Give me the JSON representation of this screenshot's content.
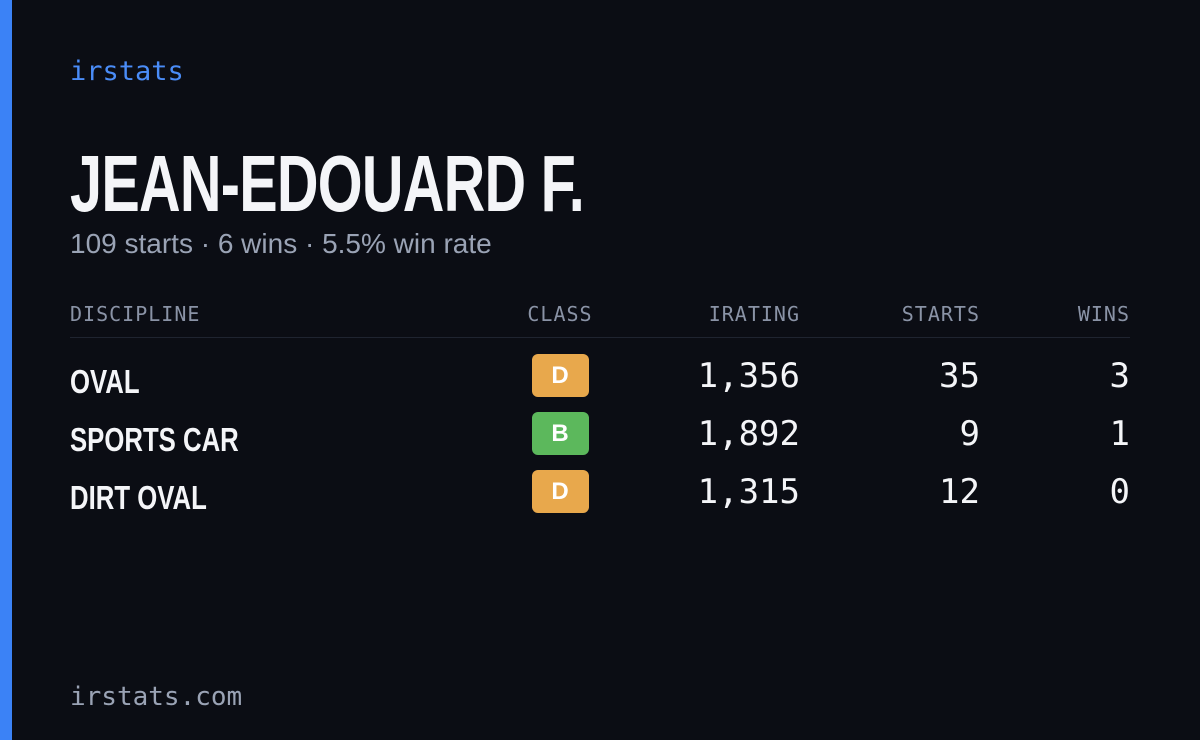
{
  "brand": "irstats",
  "name": "JEAN-EDOUARD F.",
  "summary": "109 starts · 6 wins · 5.5% win rate",
  "table": {
    "headers": [
      "DISCIPLINE",
      "CLASS",
      "IRATING",
      "STARTS",
      "WINS"
    ],
    "rows": [
      {
        "discipline": "OVAL",
        "class": "D",
        "class_color": "#e8a84c",
        "irating": "1,356",
        "starts": 35,
        "wins": 3
      },
      {
        "discipline": "SPORTS CAR",
        "class": "B",
        "class_color": "#5cb85c",
        "irating": "1,892",
        "starts": 9,
        "wins": 1
      },
      {
        "discipline": "DIRT OVAL",
        "class": "D",
        "class_color": "#e8a84c",
        "irating": "1,315",
        "starts": 12,
        "wins": 0
      }
    ]
  },
  "footer": "irstats.com"
}
